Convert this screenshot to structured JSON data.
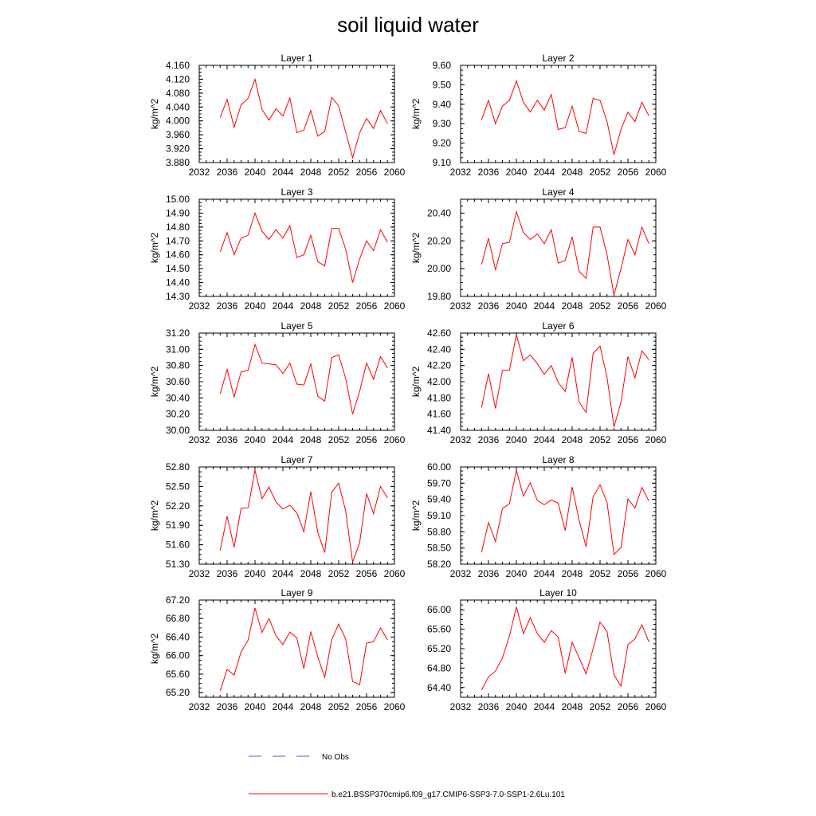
{
  "title": "soil liquid water",
  "colors": {
    "model": "#ff0000",
    "obs": "#4a63c8",
    "axis": "#000000"
  },
  "legend": {
    "placement": "bottom",
    "obs_label": "No Obs",
    "model_label": "b.e21.BSSP370cmip6.f09_g17.CMIP6-SSP3-7.0-SSP1-2.6Lu.101"
  },
  "chart_data": [
    {
      "type": "line",
      "title": "Layer 1",
      "ylabel": "kg/m^2",
      "xlim": [
        2032,
        2060
      ],
      "ylim": [
        3.88,
        4.16
      ],
      "x_ticks": [
        "2032",
        "2036",
        "2040",
        "2044",
        "2048",
        "2052",
        "2056",
        "2060"
      ],
      "y_ticks": [
        "3.880",
        "3.920",
        "3.960",
        "4.000",
        "4.040",
        "4.080",
        "4.120",
        "4.160"
      ],
      "x": [
        2035,
        2036,
        2037,
        2038,
        2039,
        2040,
        2041,
        2042,
        2043,
        2044,
        2045,
        2046,
        2047,
        2048,
        2049,
        2050,
        2051,
        2052,
        2053,
        2054,
        2055,
        2056,
        2057,
        2058,
        2059
      ],
      "series": [
        {
          "name": "b.e21.BSSP370cmip6.f09_g17.CMIP6-SSP3-7.0-SSP1-2.6Lu.101",
          "values": [
            4.01,
            4.062,
            3.982,
            4.046,
            4.065,
            4.12,
            4.033,
            4.002,
            4.035,
            4.014,
            4.066,
            3.966,
            3.973,
            4.03,
            3.956,
            3.97,
            4.068,
            4.043,
            3.968,
            3.894,
            3.966,
            4.007,
            3.978,
            4.03,
            3.992
          ]
        }
      ]
    },
    {
      "type": "line",
      "title": "Layer 2",
      "ylabel": "kg/m^2",
      "xlim": [
        2032,
        2060
      ],
      "ylim": [
        9.1,
        9.6
      ],
      "x_ticks": [
        "2032",
        "2036",
        "2040",
        "2044",
        "2048",
        "2052",
        "2056",
        "2060"
      ],
      "y_ticks": [
        "9.10",
        "9.20",
        "9.30",
        "9.40",
        "9.50",
        "9.60"
      ],
      "x": [
        2035,
        2036,
        2037,
        2038,
        2039,
        2040,
        2041,
        2042,
        2043,
        2044,
        2045,
        2046,
        2047,
        2048,
        2049,
        2050,
        2051,
        2052,
        2053,
        2054,
        2055,
        2056,
        2057,
        2058,
        2059
      ],
      "series": [
        {
          "name": "b.e21.BSSP370cmip6.f09_g17.CMIP6-SSP3-7.0-SSP1-2.6Lu.101",
          "values": [
            9.32,
            9.42,
            9.3,
            9.39,
            9.42,
            9.52,
            9.41,
            9.36,
            9.42,
            9.37,
            9.45,
            9.27,
            9.28,
            9.39,
            9.26,
            9.25,
            9.43,
            9.42,
            9.31,
            9.14,
            9.27,
            9.36,
            9.31,
            9.41,
            9.34
          ]
        }
      ]
    },
    {
      "type": "line",
      "title": "Layer 3",
      "ylabel": "kg/m^2",
      "xlim": [
        2032,
        2060
      ],
      "ylim": [
        14.3,
        15.0
      ],
      "x_ticks": [
        "2032",
        "2036",
        "2040",
        "2044",
        "2048",
        "2052",
        "2056",
        "2060"
      ],
      "y_ticks": [
        "14.30",
        "14.40",
        "14.50",
        "14.60",
        "14.70",
        "14.80",
        "14.90",
        "15.00"
      ],
      "x": [
        2035,
        2036,
        2037,
        2038,
        2039,
        2040,
        2041,
        2042,
        2043,
        2044,
        2045,
        2046,
        2047,
        2048,
        2049,
        2050,
        2051,
        2052,
        2053,
        2054,
        2055,
        2056,
        2057,
        2058,
        2059
      ],
      "series": [
        {
          "name": "b.e21.BSSP370cmip6.f09_g17.CMIP6-SSP3-7.0-SSP1-2.6Lu.101",
          "values": [
            14.62,
            14.76,
            14.6,
            14.72,
            14.74,
            14.9,
            14.77,
            14.71,
            14.78,
            14.72,
            14.81,
            14.58,
            14.6,
            14.74,
            14.55,
            14.52,
            14.79,
            14.79,
            14.64,
            14.4,
            14.57,
            14.7,
            14.63,
            14.78,
            14.69
          ]
        }
      ]
    },
    {
      "type": "line",
      "title": "Layer 4",
      "ylabel": "kg/m^2",
      "xlim": [
        2032,
        2060
      ],
      "ylim": [
        19.8,
        20.5
      ],
      "x_ticks": [
        "2032",
        "2036",
        "2040",
        "2044",
        "2048",
        "2052",
        "2056",
        "2060"
      ],
      "y_ticks": [
        "19.80",
        "20.00",
        "20.20",
        "20.40"
      ],
      "x": [
        2035,
        2036,
        2037,
        2038,
        2039,
        2040,
        2041,
        2042,
        2043,
        2044,
        2045,
        2046,
        2047,
        2048,
        2049,
        2050,
        2051,
        2052,
        2053,
        2054,
        2055,
        2056,
        2057,
        2058,
        2059
      ],
      "series": [
        {
          "name": "b.e21.BSSP370cmip6.f09_g17.CMIP6-SSP3-7.0-SSP1-2.6Lu.101",
          "values": [
            20.03,
            20.22,
            19.99,
            20.18,
            20.19,
            20.41,
            20.26,
            20.21,
            20.25,
            20.18,
            20.28,
            20.04,
            20.06,
            20.23,
            19.98,
            19.93,
            20.3,
            20.3,
            20.1,
            19.81,
            20.0,
            20.21,
            20.1,
            20.3,
            20.18
          ]
        }
      ]
    },
    {
      "type": "line",
      "title": "Layer 5",
      "ylabel": "kg/m^2",
      "xlim": [
        2032,
        2060
      ],
      "ylim": [
        30.0,
        31.2
      ],
      "x_ticks": [
        "2032",
        "2036",
        "2040",
        "2044",
        "2048",
        "2052",
        "2056",
        "2060"
      ],
      "y_ticks": [
        "30.00",
        "30.20",
        "30.40",
        "30.60",
        "30.80",
        "31.00",
        "31.20"
      ],
      "x": [
        2035,
        2036,
        2037,
        2038,
        2039,
        2040,
        2041,
        2042,
        2043,
        2044,
        2045,
        2046,
        2047,
        2048,
        2049,
        2050,
        2051,
        2052,
        2053,
        2054,
        2055,
        2056,
        2057,
        2058,
        2059
      ],
      "series": [
        {
          "name": "b.e21.BSSP370cmip6.f09_g17.CMIP6-SSP3-7.0-SSP1-2.6Lu.101",
          "values": [
            30.45,
            30.75,
            30.41,
            30.72,
            30.74,
            31.06,
            30.83,
            30.82,
            30.81,
            30.7,
            30.83,
            30.57,
            30.56,
            30.82,
            30.42,
            30.36,
            30.9,
            30.93,
            30.64,
            30.2,
            30.48,
            30.83,
            30.63,
            30.91,
            30.77
          ]
        }
      ]
    },
    {
      "type": "line",
      "title": "Layer 6",
      "ylabel": "kg/m^2",
      "xlim": [
        2032,
        2060
      ],
      "ylim": [
        41.4,
        42.6
      ],
      "x_ticks": [
        "2032",
        "2036",
        "2040",
        "2044",
        "2048",
        "2052",
        "2056",
        "2060"
      ],
      "y_ticks": [
        "41.40",
        "41.60",
        "41.80",
        "42.00",
        "42.20",
        "42.40",
        "42.60"
      ],
      "x": [
        2035,
        2036,
        2037,
        2038,
        2039,
        2040,
        2041,
        2042,
        2043,
        2044,
        2045,
        2046,
        2047,
        2048,
        2049,
        2050,
        2051,
        2052,
        2053,
        2054,
        2055,
        2056,
        2057,
        2058,
        2059
      ],
      "series": [
        {
          "name": "b.e21.BSSP370cmip6.f09_g17.CMIP6-SSP3-7.0-SSP1-2.6Lu.101",
          "values": [
            41.68,
            42.1,
            41.67,
            42.14,
            42.14,
            42.58,
            42.26,
            42.33,
            42.22,
            42.09,
            42.2,
            41.99,
            41.88,
            42.3,
            41.75,
            41.62,
            42.35,
            42.44,
            42.05,
            41.44,
            41.75,
            42.31,
            42.05,
            42.38,
            42.27
          ]
        }
      ]
    },
    {
      "type": "line",
      "title": "Layer 7",
      "ylabel": "kg/m^2",
      "xlim": [
        2032,
        2060
      ],
      "ylim": [
        51.3,
        52.8
      ],
      "x_ticks": [
        "2032",
        "2036",
        "2040",
        "2044",
        "2048",
        "2052",
        "2056",
        "2060"
      ],
      "y_ticks": [
        "51.30",
        "51.60",
        "51.90",
        "52.20",
        "52.50",
        "52.80"
      ],
      "x": [
        2035,
        2036,
        2037,
        2038,
        2039,
        2040,
        2041,
        2042,
        2043,
        2044,
        2045,
        2046,
        2047,
        2048,
        2049,
        2050,
        2051,
        2052,
        2053,
        2054,
        2055,
        2056,
        2057,
        2058,
        2059
      ],
      "series": [
        {
          "name": "b.e21.BSSP370cmip6.f09_g17.CMIP6-SSP3-7.0-SSP1-2.6Lu.101",
          "values": [
            51.51,
            52.04,
            51.56,
            52.16,
            52.17,
            52.75,
            52.31,
            52.49,
            52.26,
            52.15,
            52.21,
            52.09,
            51.8,
            52.42,
            51.79,
            51.48,
            52.41,
            52.55,
            52.12,
            51.33,
            51.63,
            52.39,
            52.08,
            52.5,
            52.32
          ]
        }
      ]
    },
    {
      "type": "line",
      "title": "Layer 8",
      "ylabel": "kg/m^2",
      "xlim": [
        2032,
        2060
      ],
      "ylim": [
        58.2,
        60.0
      ],
      "x_ticks": [
        "2032",
        "2036",
        "2040",
        "2044",
        "2048",
        "2052",
        "2056",
        "2060"
      ],
      "y_ticks": [
        "58.20",
        "58.50",
        "58.80",
        "59.10",
        "59.40",
        "59.70",
        "60.00"
      ],
      "x": [
        2035,
        2036,
        2037,
        2038,
        2039,
        2040,
        2041,
        2042,
        2043,
        2044,
        2045,
        2046,
        2047,
        2048,
        2049,
        2050,
        2051,
        2052,
        2053,
        2054,
        2055,
        2056,
        2057,
        2058,
        2059
      ],
      "series": [
        {
          "name": "b.e21.BSSP370cmip6.f09_g17.CMIP6-SSP3-7.0-SSP1-2.6Lu.101",
          "values": [
            58.42,
            58.97,
            58.62,
            59.23,
            59.32,
            59.94,
            59.46,
            59.71,
            59.38,
            59.3,
            59.39,
            59.33,
            58.82,
            59.63,
            59.01,
            58.52,
            59.45,
            59.67,
            59.34,
            58.38,
            58.51,
            59.41,
            59.24,
            59.62,
            59.37
          ]
        }
      ]
    },
    {
      "type": "line",
      "title": "Layer 9",
      "ylabel": "kg/m^2",
      "xlim": [
        2032,
        2060
      ],
      "ylim": [
        65.1,
        67.2
      ],
      "x_ticks": [
        "2032",
        "2036",
        "2040",
        "2044",
        "2048",
        "2052",
        "2056",
        "2060"
      ],
      "y_ticks": [
        "65.20",
        "65.60",
        "66.00",
        "66.40",
        "66.80",
        "67.20"
      ],
      "x": [
        2035,
        2036,
        2037,
        2038,
        2039,
        2040,
        2041,
        2042,
        2043,
        2044,
        2045,
        2046,
        2047,
        2048,
        2049,
        2050,
        2051,
        2052,
        2053,
        2054,
        2055,
        2056,
        2057,
        2058,
        2059
      ],
      "series": [
        {
          "name": "b.e21.BSSP370cmip6.f09_g17.CMIP6-SSP3-7.0-SSP1-2.6Lu.101",
          "values": [
            65.24,
            65.7,
            65.58,
            66.08,
            66.33,
            67.03,
            66.5,
            66.8,
            66.43,
            66.24,
            66.51,
            66.38,
            65.72,
            66.52,
            65.97,
            65.53,
            66.35,
            66.68,
            66.36,
            65.44,
            65.37,
            66.27,
            66.3,
            66.6,
            66.34
          ]
        }
      ]
    },
    {
      "type": "line",
      "title": "Layer 10",
      "ylabel": "",
      "xlim": [
        2032,
        2060
      ],
      "ylim": [
        64.2,
        66.2
      ],
      "x_ticks": [
        "2032",
        "2036",
        "2040",
        "2044",
        "2048",
        "2052",
        "2056",
        "2060"
      ],
      "y_ticks": [
        "64.40",
        "64.80",
        "65.20",
        "65.60",
        "66.00"
      ],
      "x": [
        2035,
        2036,
        2037,
        2038,
        2039,
        2040,
        2041,
        2042,
        2043,
        2044,
        2045,
        2046,
        2047,
        2048,
        2049,
        2050,
        2051,
        2052,
        2053,
        2054,
        2055,
        2056,
        2057,
        2058,
        2059
      ],
      "series": [
        {
          "name": "b.e21.BSSP370cmip6.f09_g17.CMIP6-SSP3-7.0-SSP1-2.6Lu.101",
          "values": [
            64.35,
            64.62,
            64.74,
            65.01,
            65.46,
            66.06,
            65.51,
            65.84,
            65.51,
            65.33,
            65.57,
            65.44,
            64.69,
            65.33,
            65.01,
            64.68,
            65.2,
            65.75,
            65.55,
            64.66,
            64.43,
            65.28,
            65.4,
            65.69,
            65.34
          ]
        }
      ]
    }
  ]
}
